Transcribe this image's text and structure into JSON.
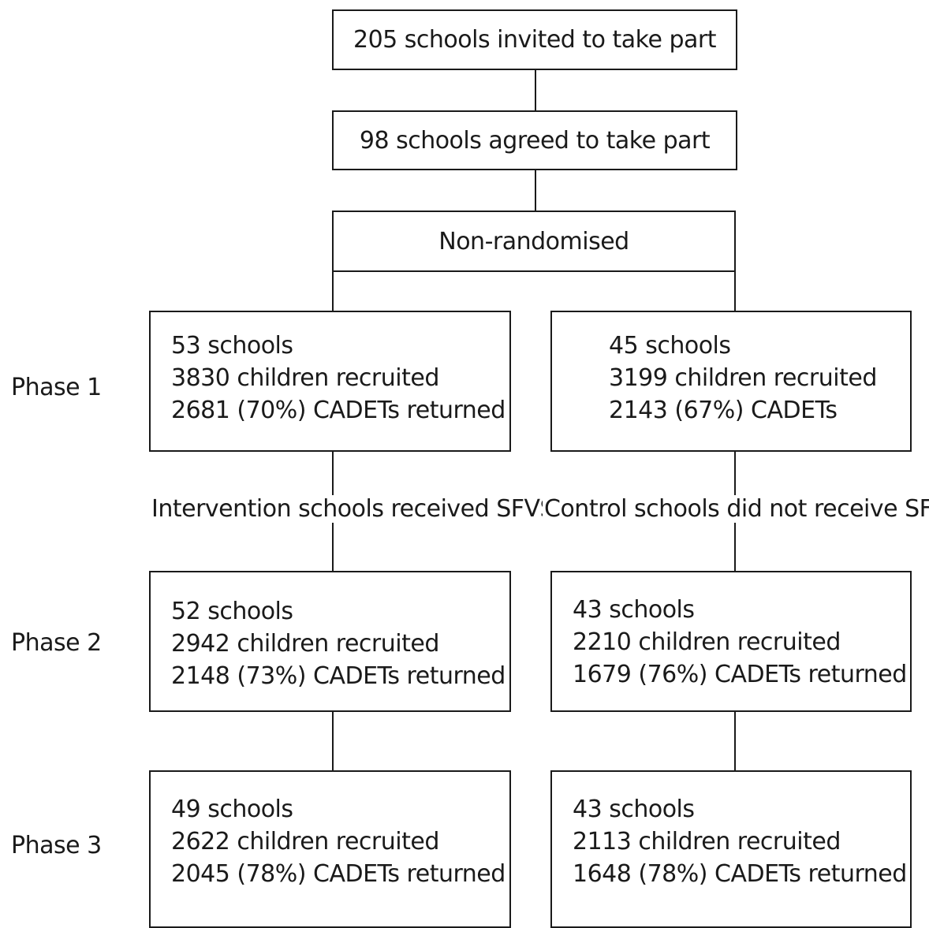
{
  "top": {
    "invited": "205 schools invited to take part",
    "agreed": "98 schools agreed to take part",
    "allocation": "Non-randomised"
  },
  "phases": [
    {
      "label": "Phase 1",
      "intervention": [
        "53 schools",
        "3830 children recruited",
        "2681 (70%) CADETs returned"
      ],
      "control": [
        "45 schools",
        "3199 children recruited",
        "2143 (67%) CADETs"
      ]
    },
    {
      "label": "Phase 2",
      "intervention": [
        "52 schools",
        "2942 children recruited",
        "2148 (73%) CADETs returned"
      ],
      "control": [
        "43 schools",
        "2210 children recruited",
        "1679 (76%) CADETs returned"
      ]
    },
    {
      "label": "Phase 3",
      "intervention": [
        "49 schools",
        "2622 children recruited",
        "2045 (78%) CADETs returned"
      ],
      "control": [
        "43 schools",
        "2113 children recruited",
        "1648 (78%) CADETs returned"
      ]
    }
  ],
  "arm_labels": {
    "intervention": "Intervention schools received SFVS",
    "control": "Control schools did not receive SFVS"
  }
}
